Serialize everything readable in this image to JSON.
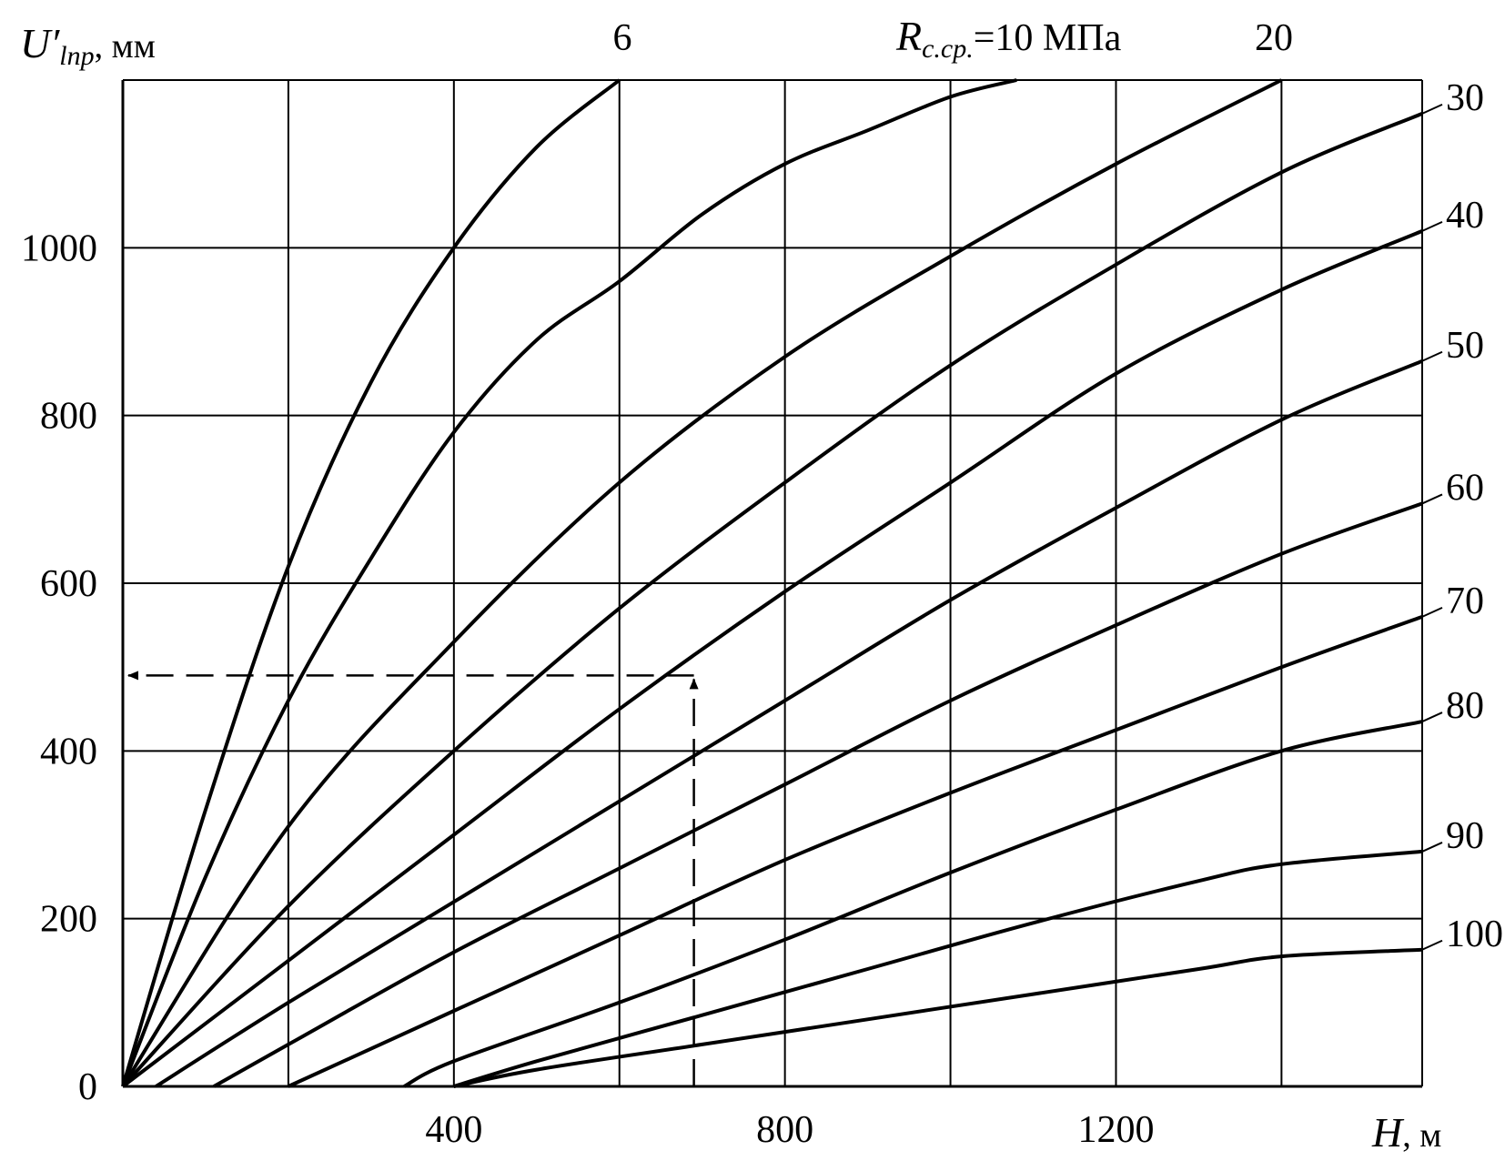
{
  "chart_data": {
    "type": "line",
    "title": "",
    "ylabel_parts": {
      "main": "U′",
      "sub": "lпр",
      "unit": ", мм"
    },
    "xlabel_parts": {
      "main": "H",
      "unit": ", м"
    },
    "xlim": [
      0,
      1570
    ],
    "ylim": [
      0,
      1200
    ],
    "x_ticks": [
      400,
      800,
      1200
    ],
    "y_ticks": [
      0,
      200,
      400,
      600,
      800,
      1000
    ],
    "x_tick_labels": [
      "400",
      "800",
      "1200"
    ],
    "y_tick_labels": [
      "0",
      "200",
      "400",
      "600",
      "800",
      "1000"
    ],
    "x_gridlines": [
      200,
      400,
      600,
      800,
      1000,
      1200,
      1400,
      1570
    ],
    "y_gridlines": [
      200,
      400,
      600,
      800,
      1000,
      1200
    ],
    "grid": true,
    "top_labels": [
      {
        "text": "6",
        "x": 600
      },
      {
        "text": "20",
        "x": 1400
      }
    ],
    "top_param_label": {
      "main": "R",
      "sub": "с.ср.",
      "rest": "=10 МПа",
      "x": 1000
    },
    "series": [
      {
        "name": "6",
        "label": "",
        "points": [
          [
            0,
            0
          ],
          [
            100,
            330
          ],
          [
            200,
            620
          ],
          [
            300,
            840
          ],
          [
            400,
            1000
          ],
          [
            500,
            1120
          ],
          [
            600,
            1200
          ]
        ]
      },
      {
        "name": "10",
        "label": "",
        "points": [
          [
            0,
            0
          ],
          [
            100,
            250
          ],
          [
            200,
            460
          ],
          [
            300,
            630
          ],
          [
            400,
            780
          ],
          [
            500,
            890
          ],
          [
            600,
            960
          ],
          [
            700,
            1040
          ],
          [
            800,
            1100
          ],
          [
            900,
            1140
          ],
          [
            1000,
            1180
          ],
          [
            1080,
            1200
          ]
        ]
      },
      {
        "name": "20",
        "label": "",
        "points": [
          [
            0,
            0
          ],
          [
            200,
            310
          ],
          [
            400,
            530
          ],
          [
            600,
            720
          ],
          [
            800,
            870
          ],
          [
            1000,
            990
          ],
          [
            1200,
            1100
          ],
          [
            1400,
            1200
          ]
        ]
      },
      {
        "name": "30",
        "label": "30",
        "points": [
          [
            0,
            0
          ],
          [
            200,
            215
          ],
          [
            400,
            400
          ],
          [
            600,
            570
          ],
          [
            800,
            720
          ],
          [
            1000,
            860
          ],
          [
            1200,
            980
          ],
          [
            1400,
            1090
          ],
          [
            1570,
            1160
          ]
        ]
      },
      {
        "name": "40",
        "label": "40",
        "points": [
          [
            0,
            0
          ],
          [
            200,
            150
          ],
          [
            400,
            300
          ],
          [
            600,
            450
          ],
          [
            800,
            590
          ],
          [
            1000,
            720
          ],
          [
            1200,
            850
          ],
          [
            1400,
            950
          ],
          [
            1570,
            1020
          ]
        ]
      },
      {
        "name": "50",
        "label": "50",
        "points": [
          [
            40,
            0
          ],
          [
            200,
            100
          ],
          [
            400,
            220
          ],
          [
            600,
            340
          ],
          [
            800,
            460
          ],
          [
            1000,
            580
          ],
          [
            1200,
            690
          ],
          [
            1400,
            795
          ],
          [
            1570,
            865
          ]
        ]
      },
      {
        "name": "60",
        "label": "60",
        "points": [
          [
            110,
            0
          ],
          [
            200,
            50
          ],
          [
            400,
            160
          ],
          [
            600,
            260
          ],
          [
            800,
            360
          ],
          [
            1000,
            460
          ],
          [
            1200,
            550
          ],
          [
            1400,
            635
          ],
          [
            1570,
            695
          ]
        ]
      },
      {
        "name": "70",
        "label": "70",
        "points": [
          [
            200,
            0
          ],
          [
            400,
            90
          ],
          [
            600,
            180
          ],
          [
            800,
            270
          ],
          [
            1000,
            350
          ],
          [
            1200,
            425
          ],
          [
            1400,
            500
          ],
          [
            1570,
            560
          ]
        ]
      },
      {
        "name": "80",
        "label": "80",
        "points": [
          [
            340,
            0
          ],
          [
            400,
            30
          ],
          [
            600,
            100
          ],
          [
            800,
            175
          ],
          [
            1000,
            255
          ],
          [
            1200,
            330
          ],
          [
            1400,
            400
          ],
          [
            1570,
            435
          ]
        ]
      },
      {
        "name": "90",
        "label": "90",
        "points": [
          [
            400,
            0
          ],
          [
            500,
            30
          ],
          [
            700,
            85
          ],
          [
            900,
            140
          ],
          [
            1100,
            195
          ],
          [
            1300,
            245
          ],
          [
            1400,
            265
          ],
          [
            1570,
            280
          ]
        ]
      },
      {
        "name": "100",
        "label": "100",
        "points": [
          [
            400,
            0
          ],
          [
            500,
            20
          ],
          [
            700,
            50
          ],
          [
            900,
            80
          ],
          [
            1100,
            110
          ],
          [
            1300,
            140
          ],
          [
            1400,
            155
          ],
          [
            1570,
            163
          ]
        ]
      }
    ],
    "example_lookup": {
      "style": "dashed-arrows",
      "start": [
        690,
        0
      ],
      "corner": [
        690,
        490
      ],
      "end": [
        0,
        490
      ]
    }
  }
}
